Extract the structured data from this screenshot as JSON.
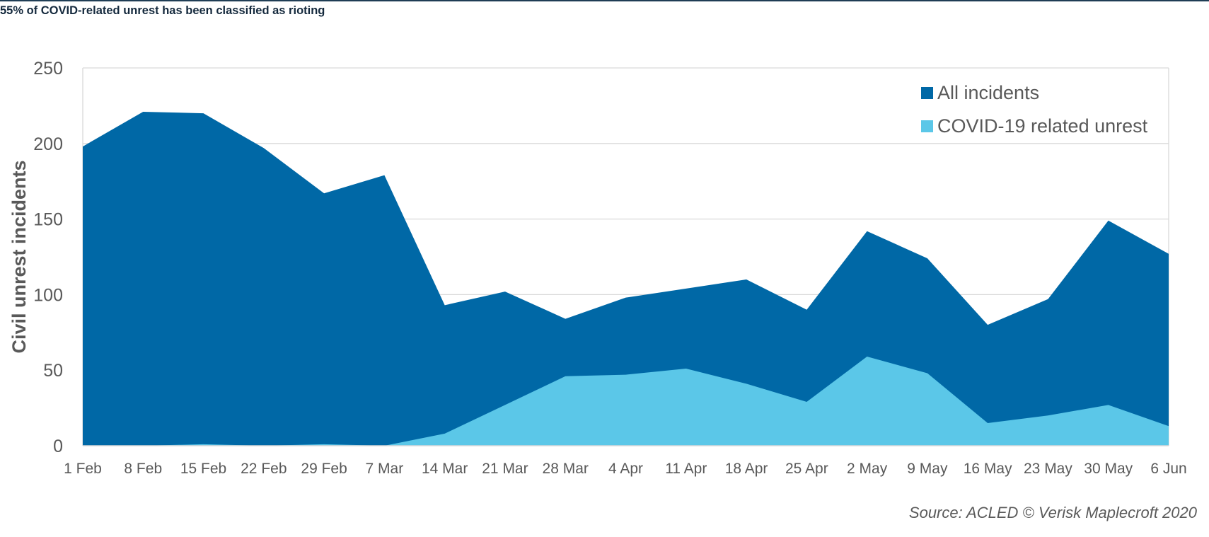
{
  "header": {
    "title": "55% of COVID-related unrest has been classified as rioting"
  },
  "chart_data": {
    "type": "area",
    "title": "55% of COVID-related unrest has been classified as rioting",
    "xlabel": "",
    "ylabel": "Civil unrest incidents",
    "ylim": [
      0,
      250
    ],
    "yticks": [
      "0",
      "50",
      "100",
      "150",
      "200",
      "250"
    ],
    "categories": [
      "1 Feb",
      "8 Feb",
      "15 Feb",
      "22 Feb",
      "29 Feb",
      "7 Mar",
      "14 Mar",
      "21 Mar",
      "28 Mar",
      "4 Apr",
      "11 Apr",
      "18 Apr",
      "25 Apr",
      "2 May",
      "9 May",
      "16 May",
      "23 May",
      "30 May",
      "6 Jun"
    ],
    "series": [
      {
        "name": "All incidents",
        "color": "#0068a6",
        "values": [
          198,
          221,
          220,
          197,
          167,
          179,
          93,
          102,
          84,
          98,
          104,
          110,
          90,
          142,
          124,
          80,
          97,
          149,
          127
        ]
      },
      {
        "name": "COVID-19 related unrest",
        "color": "#5bc7e8",
        "values": [
          0,
          0,
          1,
          0,
          1,
          0,
          8,
          27,
          46,
          47,
          51,
          41,
          29,
          59,
          48,
          15,
          20,
          27,
          13
        ]
      }
    ],
    "grid": true,
    "legend_position": "top-right",
    "colors": {
      "grid": "#d9d9d9",
      "axis_text": "#595959"
    }
  },
  "footer": {
    "source": "Source: ACLED  © Verisk Maplecroft 2020"
  }
}
